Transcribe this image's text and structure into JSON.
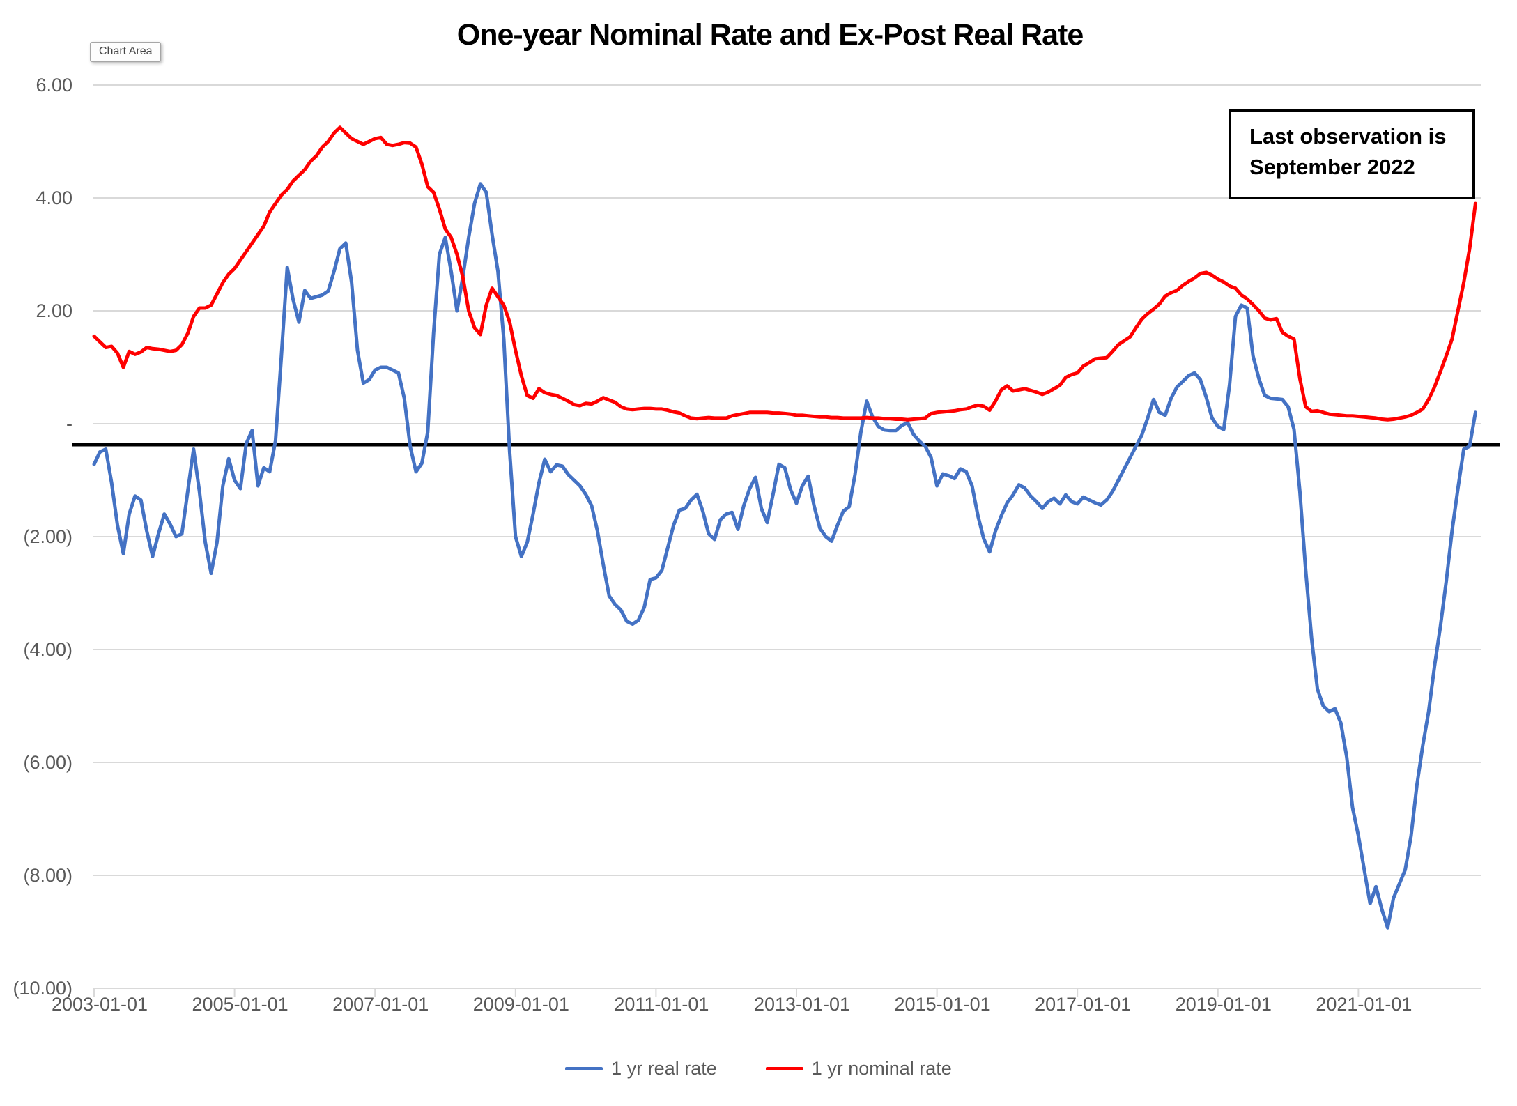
{
  "window": {
    "tooltip_label": "Chart Area"
  },
  "header": {
    "title": "One-year Nominal Rate and Ex-Post Real Rate"
  },
  "annotation_box": {
    "line1": "Last observation is",
    "line2": "September 2022"
  },
  "legend": [
    {
      "label": "1 yr real rate",
      "color": "#4472C4"
    },
    {
      "label": "1 yr nominal rate",
      "color": "#FF0000"
    }
  ],
  "chart_data": {
    "type": "line",
    "title": "One-year Nominal Rate and Ex-Post Real Rate",
    "x_start": "2003-01",
    "x_end": "2022-09",
    "frequency": "monthly",
    "ylim": [
      -10,
      6
    ],
    "grid_step": 2,
    "grid_on": true,
    "gridline_color": "#D9D9D9",
    "axis_text_color": "#595959",
    "legend_position": "bottom",
    "y_ticks": [
      {
        "value": 6,
        "label": "6.00"
      },
      {
        "value": 4,
        "label": "4.00"
      },
      {
        "value": 2,
        "label": "2.00"
      },
      {
        "value": 0,
        "label": " -  "
      },
      {
        "value": -2,
        "label": "(2.00)"
      },
      {
        "value": -4,
        "label": "(4.00)"
      },
      {
        "value": -6,
        "label": "(6.00)"
      },
      {
        "value": -8,
        "label": "(8.00)"
      },
      {
        "value": -10,
        "label": "(10.00)"
      }
    ],
    "x_tick_labels": [
      "2003-01-01",
      "2005-01-01",
      "2007-01-01",
      "2009-01-01",
      "2011-01-01",
      "2013-01-01",
      "2015-01-01",
      "2017-01-01",
      "2019-01-01",
      "2021-01-01"
    ],
    "x_tick_month_index": [
      0,
      24,
      48,
      72,
      96,
      120,
      144,
      168,
      192,
      216
    ],
    "hline": {
      "value": -0.37,
      "color": "#000000"
    },
    "series": [
      {
        "name": "1 yr real rate",
        "color": "#4472C4",
        "values": [
          -0.72,
          -0.5,
          -0.45,
          -1.05,
          -1.8,
          -2.3,
          -1.6,
          -1.28,
          -1.35,
          -1.9,
          -2.35,
          -1.95,
          -1.6,
          -1.78,
          -2.0,
          -1.95,
          -1.2,
          -0.45,
          -1.2,
          -2.1,
          -2.65,
          -2.1,
          -1.1,
          -0.62,
          -1.0,
          -1.15,
          -0.35,
          -0.12,
          -1.1,
          -0.78,
          -0.85,
          -0.3,
          1.2,
          2.77,
          2.2,
          1.8,
          2.36,
          2.22,
          2.25,
          2.28,
          2.35,
          2.7,
          3.1,
          3.2,
          2.5,
          1.3,
          0.72,
          0.78,
          0.95,
          1.0,
          1.0,
          0.95,
          0.9,
          0.45,
          -0.4,
          -0.85,
          -0.7,
          -0.15,
          1.6,
          3.0,
          3.3,
          2.7,
          2.0,
          2.6,
          3.3,
          3.9,
          4.25,
          4.1,
          3.35,
          2.7,
          1.5,
          -0.5,
          -2.0,
          -2.35,
          -2.1,
          -1.6,
          -1.05,
          -0.63,
          -0.85,
          -0.73,
          -0.75,
          -0.9,
          -1.0,
          -1.1,
          -1.25,
          -1.45,
          -1.9,
          -2.5,
          -3.05,
          -3.2,
          -3.3,
          -3.5,
          -3.55,
          -3.48,
          -3.25,
          -2.76,
          -2.73,
          -2.6,
          -2.2,
          -1.8,
          -1.53,
          -1.5,
          -1.35,
          -1.25,
          -1.55,
          -1.95,
          -2.05,
          -1.7,
          -1.6,
          -1.57,
          -1.87,
          -1.45,
          -1.15,
          -0.95,
          -1.5,
          -1.75,
          -1.25,
          -0.72,
          -0.78,
          -1.17,
          -1.41,
          -1.1,
          -0.93,
          -1.45,
          -1.85,
          -2.0,
          -2.08,
          -1.8,
          -1.55,
          -1.47,
          -0.9,
          -0.15,
          0.4,
          0.12,
          -0.05,
          -0.11,
          -0.12,
          -0.12,
          -0.03,
          0.02,
          -0.19,
          -0.31,
          -0.4,
          -0.6,
          -1.1,
          -0.89,
          -0.92,
          -0.97,
          -0.8,
          -0.85,
          -1.1,
          -1.63,
          -2.04,
          -2.27,
          -1.9,
          -1.63,
          -1.4,
          -1.26,
          -1.08,
          -1.14,
          -1.28,
          -1.38,
          -1.5,
          -1.38,
          -1.32,
          -1.42,
          -1.26,
          -1.38,
          -1.42,
          -1.3,
          -1.35,
          -1.4,
          -1.44,
          -1.35,
          -1.2,
          -1.0,
          -0.8,
          -0.6,
          -0.4,
          -0.2,
          0.1,
          0.43,
          0.2,
          0.15,
          0.45,
          0.65,
          0.75,
          0.85,
          0.9,
          0.78,
          0.47,
          0.1,
          -0.05,
          -0.1,
          0.7,
          1.9,
          2.1,
          2.05,
          1.2,
          0.8,
          0.5,
          0.45,
          0.44,
          0.43,
          0.3,
          -0.1,
          -1.2,
          -2.6,
          -3.8,
          -4.7,
          -5.0,
          -5.1,
          -5.05,
          -5.3,
          -5.9,
          -6.8,
          -7.3,
          -7.9,
          -8.5,
          -8.2,
          -8.6,
          -8.93,
          -8.4,
          -8.15,
          -7.9,
          -7.3,
          -6.4,
          -5.7,
          -5.1,
          -4.3,
          -3.6,
          -2.8,
          -1.9,
          -1.15,
          -0.45,
          -0.4,
          0.2
        ]
      },
      {
        "name": "1 yr nominal rate",
        "color": "#FF0000",
        "values": [
          1.55,
          1.45,
          1.35,
          1.37,
          1.25,
          1.0,
          1.28,
          1.23,
          1.27,
          1.35,
          1.33,
          1.32,
          1.3,
          1.28,
          1.3,
          1.4,
          1.6,
          1.9,
          2.05,
          2.05,
          2.1,
          2.3,
          2.5,
          2.65,
          2.75,
          2.9,
          3.05,
          3.2,
          3.35,
          3.5,
          3.75,
          3.9,
          4.05,
          4.15,
          4.3,
          4.4,
          4.5,
          4.65,
          4.75,
          4.9,
          5.0,
          5.15,
          5.25,
          5.15,
          5.05,
          5.0,
          4.95,
          5.0,
          5.05,
          5.07,
          4.95,
          4.93,
          4.95,
          4.98,
          4.97,
          4.9,
          4.6,
          4.2,
          4.1,
          3.8,
          3.45,
          3.3,
          3.0,
          2.6,
          2.0,
          1.7,
          1.58,
          2.1,
          2.4,
          2.25,
          2.1,
          1.8,
          1.3,
          0.85,
          0.5,
          0.45,
          0.62,
          0.55,
          0.52,
          0.5,
          0.45,
          0.4,
          0.34,
          0.32,
          0.36,
          0.35,
          0.4,
          0.46,
          0.42,
          0.38,
          0.3,
          0.26,
          0.25,
          0.26,
          0.27,
          0.27,
          0.26,
          0.26,
          0.24,
          0.21,
          0.19,
          0.14,
          0.1,
          0.09,
          0.1,
          0.11,
          0.1,
          0.1,
          0.1,
          0.14,
          0.16,
          0.18,
          0.2,
          0.2,
          0.2,
          0.2,
          0.19,
          0.19,
          0.18,
          0.17,
          0.15,
          0.15,
          0.14,
          0.13,
          0.12,
          0.12,
          0.11,
          0.11,
          0.1,
          0.1,
          0.1,
          0.1,
          0.11,
          0.1,
          0.1,
          0.09,
          0.09,
          0.08,
          0.08,
          0.07,
          0.08,
          0.09,
          0.1,
          0.18,
          0.2,
          0.21,
          0.22,
          0.23,
          0.25,
          0.26,
          0.3,
          0.33,
          0.31,
          0.24,
          0.4,
          0.6,
          0.67,
          0.58,
          0.6,
          0.62,
          0.59,
          0.56,
          0.52,
          0.56,
          0.62,
          0.68,
          0.82,
          0.87,
          0.9,
          1.02,
          1.08,
          1.15,
          1.16,
          1.17,
          1.28,
          1.4,
          1.47,
          1.54,
          1.7,
          1.85,
          1.95,
          2.03,
          2.12,
          2.26,
          2.32,
          2.36,
          2.45,
          2.52,
          2.58,
          2.66,
          2.68,
          2.63,
          2.56,
          2.51,
          2.44,
          2.4,
          2.28,
          2.21,
          2.11,
          2.0,
          1.87,
          1.84,
          1.86,
          1.62,
          1.55,
          1.5,
          0.8,
          0.3,
          0.22,
          0.23,
          0.2,
          0.17,
          0.16,
          0.15,
          0.14,
          0.14,
          0.13,
          0.12,
          0.11,
          0.1,
          0.08,
          0.07,
          0.08,
          0.1,
          0.12,
          0.15,
          0.2,
          0.26,
          0.43,
          0.65,
          0.92,
          1.2,
          1.5,
          2.0,
          2.5,
          3.1,
          3.9
        ]
      }
    ]
  }
}
